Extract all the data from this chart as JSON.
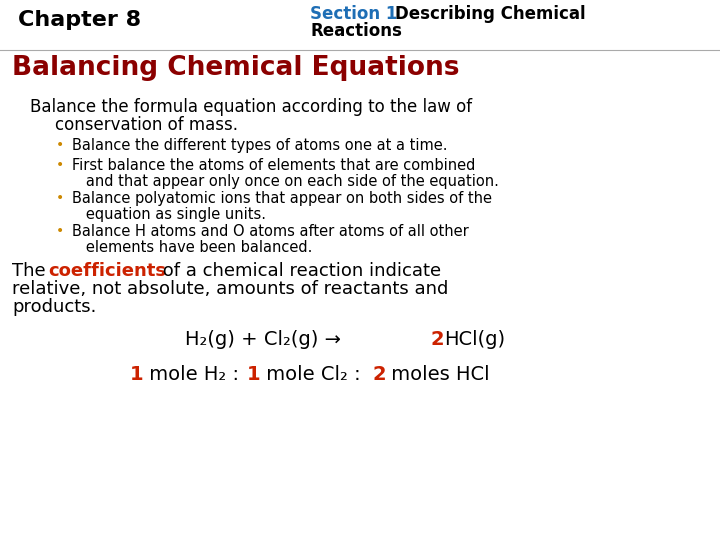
{
  "bg_color": "#ffffff",
  "chapter_text": "Chapter 8",
  "section_label": "Section 1  ",
  "section_label_color": "#1e6eb5",
  "section_line1": "Describing Chemical",
  "section_line2": "Reactions",
  "heading": "Balancing Chemical Equations",
  "heading_color": "#8b0000",
  "bullet_dot_color": "#cc8800",
  "para_highlight_color": "#cc2200",
  "red_color": "#cc2200",
  "black_color": "#000000",
  "font_family": "DejaVu Sans"
}
